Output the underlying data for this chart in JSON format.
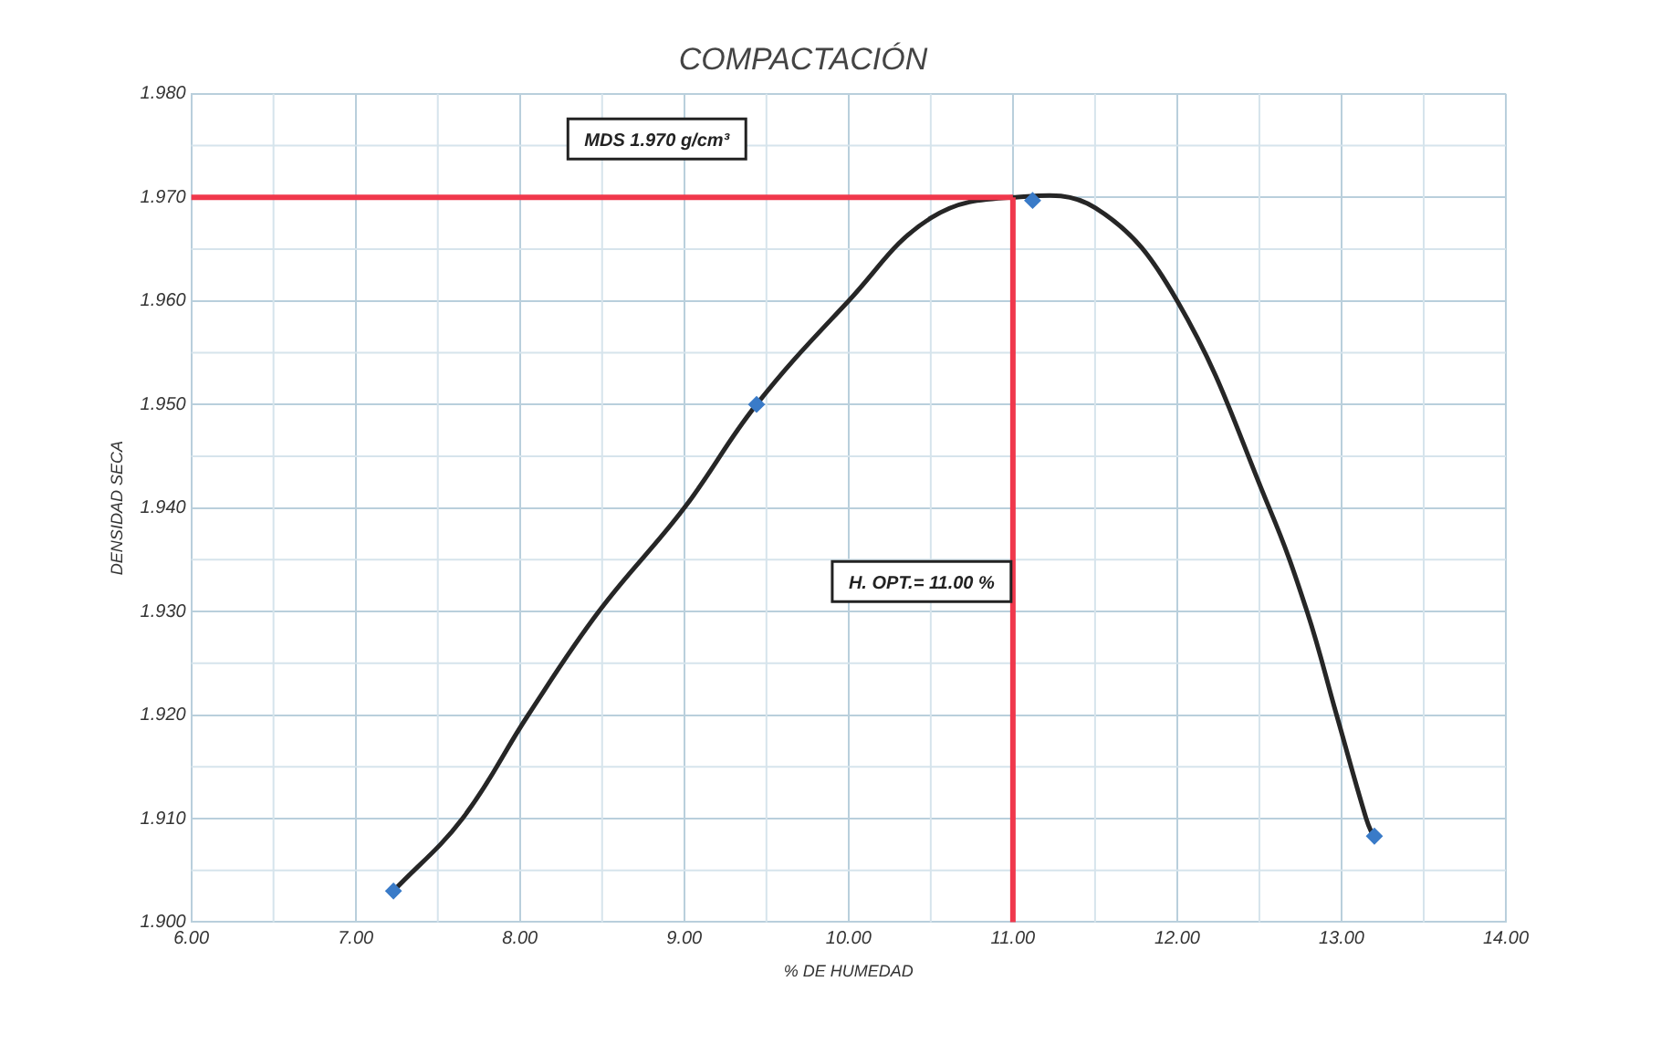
{
  "chart_data": {
    "type": "line",
    "title": "COMPACTACIÓN",
    "xlabel": "% DE HUMEDAD",
    "ylabel": "DENSIDAD SECA",
    "xlim": [
      6,
      14
    ],
    "xticks": [
      {
        "value": 6,
        "label": "6.00"
      },
      {
        "value": 7,
        "label": "7.00"
      },
      {
        "value": 8,
        "label": "8.00"
      },
      {
        "value": 9,
        "label": "9.00"
      },
      {
        "value": 10,
        "label": "10.00"
      },
      {
        "value": 11,
        "label": "11.00"
      },
      {
        "value": 12,
        "label": "12.00"
      },
      {
        "value": 13,
        "label": "13.00"
      },
      {
        "value": 14,
        "label": "14.00"
      }
    ],
    "ylim": [
      1.9,
      1.98
    ],
    "yticks": [
      {
        "value": 1.9,
        "label": "1.900"
      },
      {
        "value": 1.91,
        "label": "1.910"
      },
      {
        "value": 1.92,
        "label": "1.920"
      },
      {
        "value": 1.93,
        "label": "1.930"
      },
      {
        "value": 1.94,
        "label": "1.940"
      },
      {
        "value": 1.95,
        "label": "1.950"
      },
      {
        "value": 1.96,
        "label": "1.960"
      },
      {
        "value": 1.97,
        "label": "1.970"
      },
      {
        "value": 1.98,
        "label": "1.980"
      }
    ],
    "grid": true,
    "series": [
      {
        "color": "#262626",
        "marker": "none",
        "x": [
          7.23,
          7.65,
          8.05,
          8.48,
          9.0,
          9.44,
          10.0,
          10.5,
          11.0,
          11.5,
          12.0,
          12.56,
          12.79,
          12.97,
          13.15,
          13.2
        ],
        "values": [
          1.903,
          1.91,
          1.92,
          1.93,
          1.94,
          1.95,
          1.96,
          1.968,
          1.97,
          1.969,
          1.96,
          1.94,
          1.93,
          1.92,
          1.91,
          1.908
        ]
      },
      {
        "type": "scatter",
        "color": "#3a7bc8",
        "marker": "diamond",
        "x": [
          7.23,
          9.44,
          11.12,
          13.2
        ],
        "values": [
          1.903,
          1.95,
          1.9697,
          1.9083
        ]
      }
    ],
    "ref_lines": [
      {
        "axis": "y",
        "value": 1.97,
        "label": "MDS 1.970 g/cm³",
        "color": "#f0384c"
      },
      {
        "axis": "x",
        "value": 11,
        "label": "H. OPT.= 11.00 %",
        "color": "#f0384c"
      }
    ]
  }
}
